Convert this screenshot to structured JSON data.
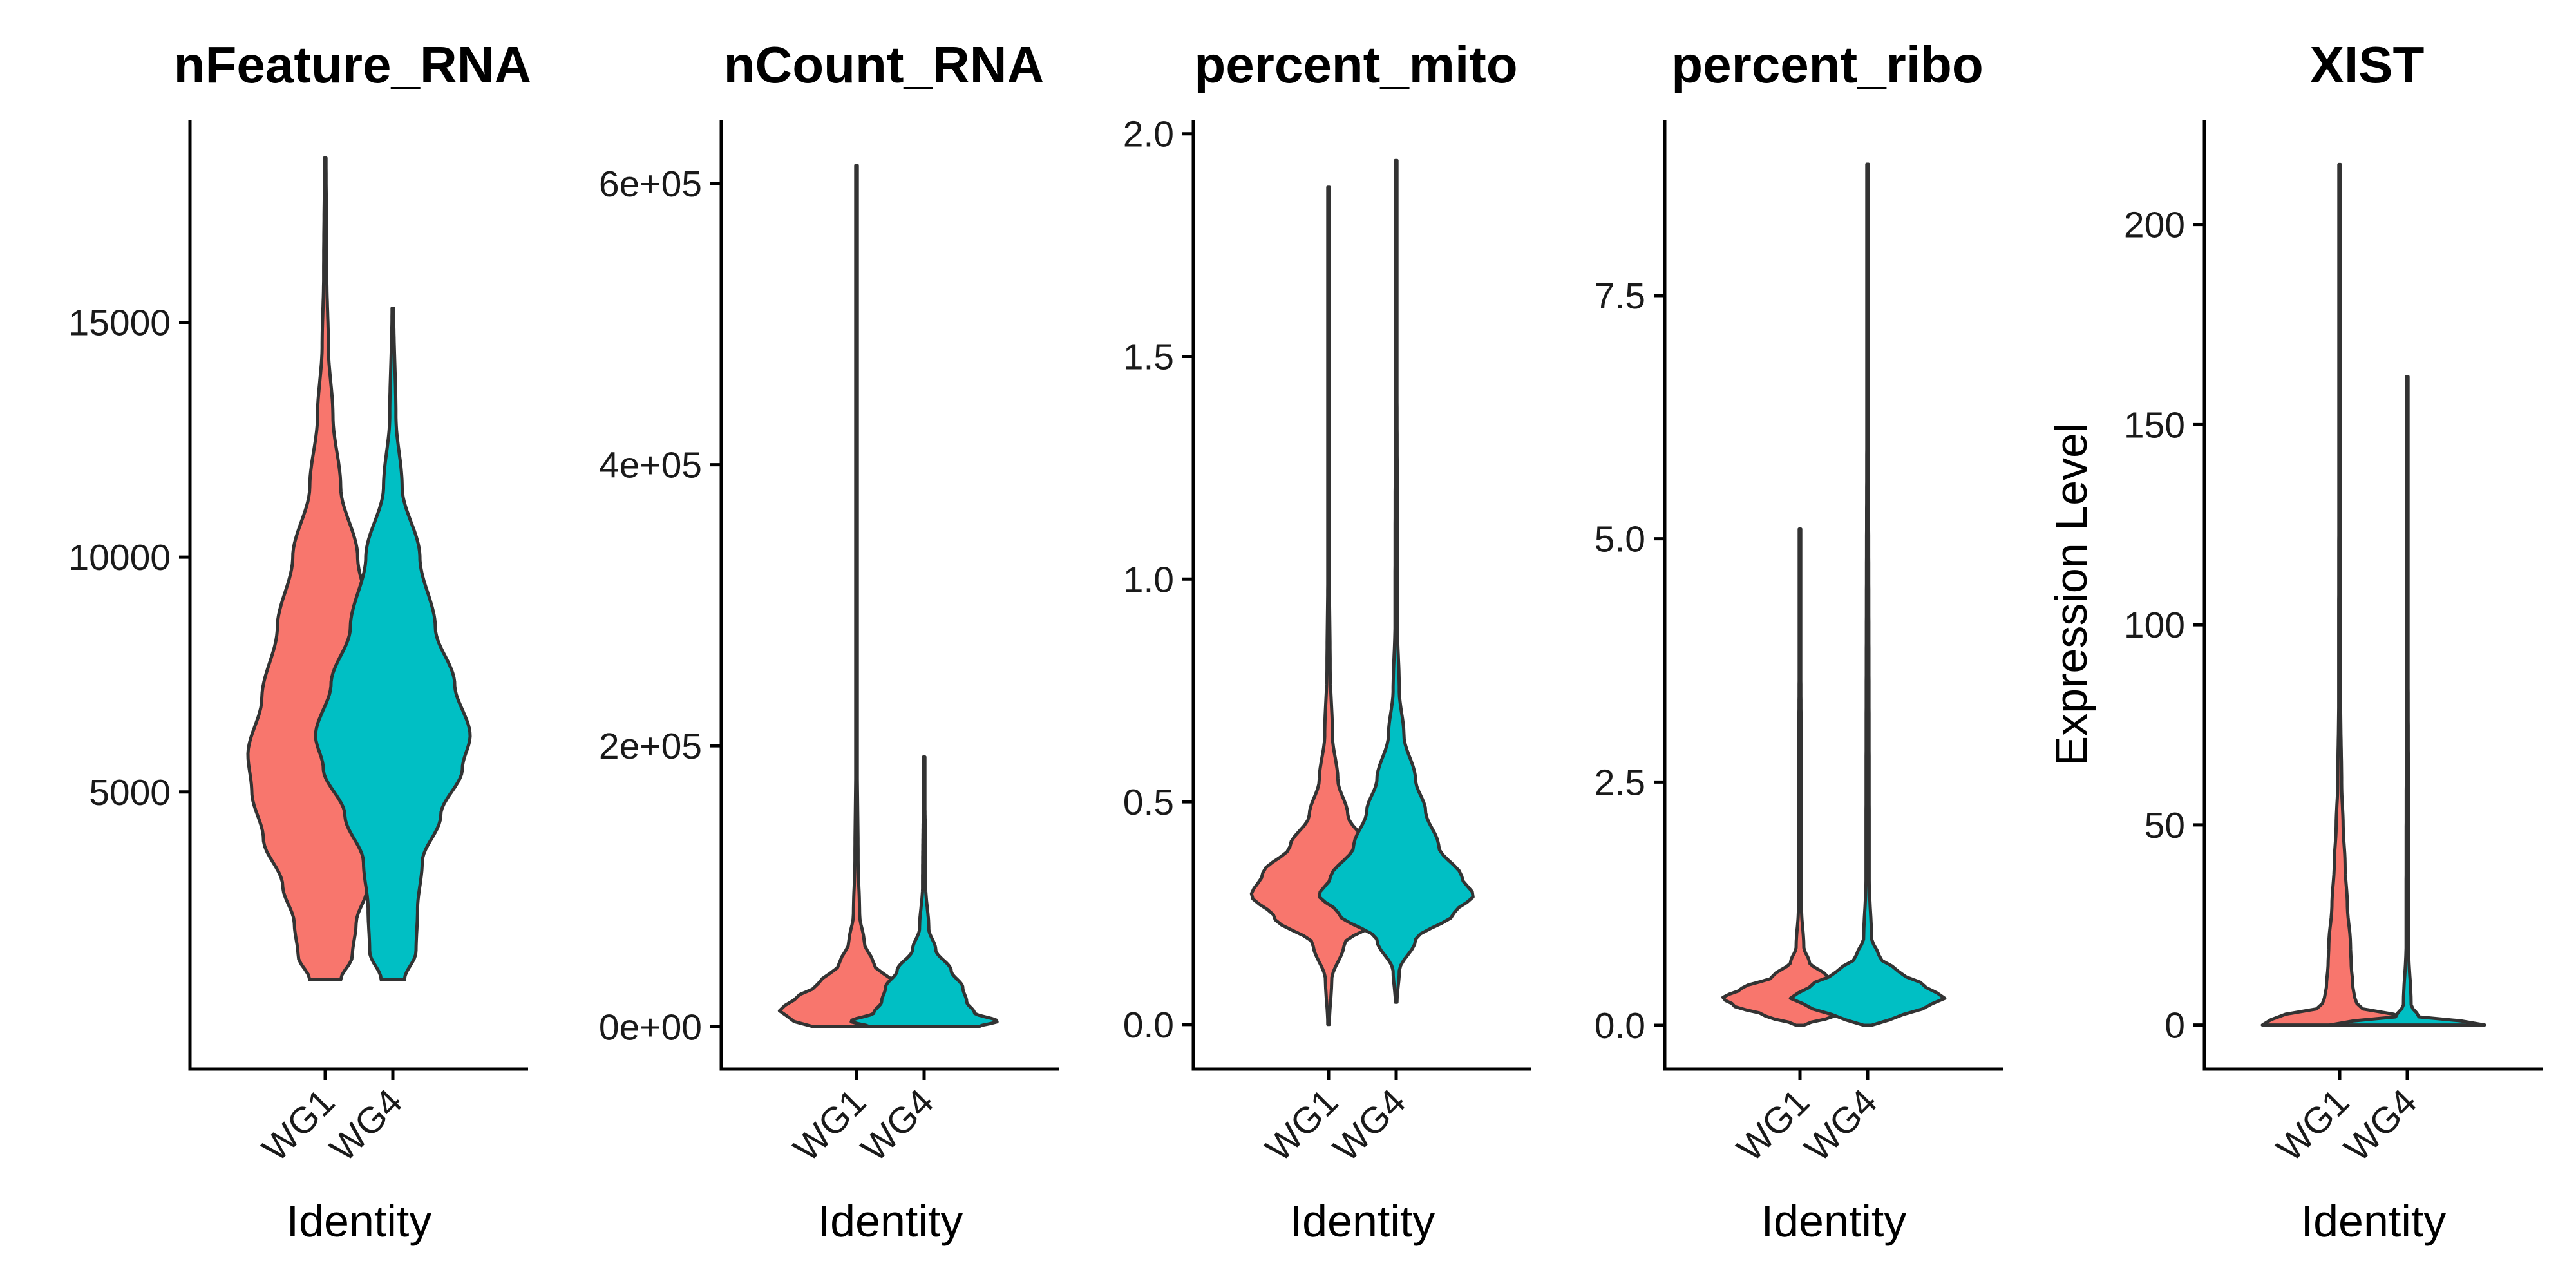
{
  "chart_data": [
    {
      "type": "violin",
      "title": "nFeature_RNA",
      "xlabel": "Identity",
      "ylabel": "",
      "categories": [
        "WG1",
        "WG4"
      ],
      "colors": [
        "#F8766D",
        "#00BFC4"
      ],
      "ylim": [
        -900,
        19300
      ],
      "yticks": [
        5000,
        10000,
        15000
      ],
      "ytick_labels": [
        "5000",
        "10000",
        "15000"
      ],
      "series": [
        {
          "range": [
            1000,
            18500
          ],
          "profile": [
            [
              1000,
              0.2
            ],
            [
              1500,
              0.35
            ],
            [
              2200,
              0.4
            ],
            [
              3000,
              0.55
            ],
            [
              4000,
              0.8
            ],
            [
              5000,
              0.95
            ],
            [
              5800,
              1.0
            ],
            [
              7000,
              0.82
            ],
            [
              8500,
              0.62
            ],
            [
              10000,
              0.42
            ],
            [
              11500,
              0.2
            ],
            [
              13000,
              0.1
            ],
            [
              14500,
              0.04
            ],
            [
              16000,
              0.02
            ],
            [
              18500,
              0.01
            ]
          ]
        },
        {
          "range": [
            1000,
            15300
          ],
          "profile": [
            [
              1000,
              0.15
            ],
            [
              1600,
              0.3
            ],
            [
              2500,
              0.32
            ],
            [
              3500,
              0.38
            ],
            [
              4500,
              0.62
            ],
            [
              5500,
              0.9
            ],
            [
              6200,
              1.0
            ],
            [
              7300,
              0.8
            ],
            [
              8500,
              0.55
            ],
            [
              10000,
              0.35
            ],
            [
              11500,
              0.12
            ],
            [
              13000,
              0.04
            ],
            [
              15300,
              0.01
            ]
          ]
        }
      ]
    },
    {
      "type": "violin",
      "title": "nCount_RNA",
      "xlabel": "Identity",
      "ylabel": "",
      "categories": [
        "WG1",
        "WG4"
      ],
      "colors": [
        "#F8766D",
        "#00BFC4"
      ],
      "ylim": [
        -30000,
        645000
      ],
      "yticks": [
        0,
        200000,
        400000,
        600000
      ],
      "ytick_labels": [
        "0e+00",
        "2e+05",
        "4e+05",
        "6e+05"
      ],
      "series": [
        {
          "range": [
            0,
            613000
          ],
          "profile": [
            [
              0,
              0.55
            ],
            [
              5000,
              0.85
            ],
            [
              12000,
              1.0
            ],
            [
              20000,
              0.8
            ],
            [
              30000,
              0.5
            ],
            [
              45000,
              0.22
            ],
            [
              60000,
              0.1
            ],
            [
              80000,
              0.04
            ],
            [
              120000,
              0.02
            ],
            [
              200000,
              0.007
            ],
            [
              613000,
              0.003
            ]
          ]
        },
        {
          "range": [
            0,
            192000
          ],
          "profile": [
            [
              0,
              0.7
            ],
            [
              4000,
              0.95
            ],
            [
              10000,
              0.65
            ],
            [
              18000,
              0.55
            ],
            [
              28000,
              0.5
            ],
            [
              40000,
              0.35
            ],
            [
              55000,
              0.15
            ],
            [
              70000,
              0.06
            ],
            [
              100000,
              0.02
            ],
            [
              192000,
              0.005
            ]
          ]
        }
      ]
    },
    {
      "type": "violin",
      "title": "percent_mito",
      "xlabel": "Identity",
      "ylabel": "",
      "categories": [
        "WG1",
        "WG4"
      ],
      "colors": [
        "#F8766D",
        "#00BFC4"
      ],
      "ylim": [
        -0.1,
        2.03
      ],
      "yticks": [
        0.0,
        0.5,
        1.0,
        1.5,
        2.0
      ],
      "ytick_labels": [
        "0.0",
        "0.5",
        "1.0",
        "1.5",
        "2.0"
      ],
      "series": [
        {
          "range": [
            0.0,
            1.88
          ],
          "profile": [
            [
              0.0,
              0.01
            ],
            [
              0.1,
              0.04
            ],
            [
              0.18,
              0.2
            ],
            [
              0.24,
              0.7
            ],
            [
              0.29,
              1.0
            ],
            [
              0.34,
              0.85
            ],
            [
              0.4,
              0.5
            ],
            [
              0.47,
              0.25
            ],
            [
              0.55,
              0.12
            ],
            [
              0.65,
              0.05
            ],
            [
              0.8,
              0.02
            ],
            [
              1.0,
              0.01
            ],
            [
              1.88,
              0.005
            ]
          ]
        },
        {
          "range": [
            0.05,
            1.94
          ],
          "profile": [
            [
              0.05,
              0.01
            ],
            [
              0.12,
              0.04
            ],
            [
              0.19,
              0.25
            ],
            [
              0.25,
              0.75
            ],
            [
              0.29,
              1.0
            ],
            [
              0.33,
              0.85
            ],
            [
              0.4,
              0.55
            ],
            [
              0.48,
              0.38
            ],
            [
              0.55,
              0.25
            ],
            [
              0.65,
              0.1
            ],
            [
              0.75,
              0.04
            ],
            [
              0.9,
              0.015
            ],
            [
              1.94,
              0.005
            ]
          ]
        }
      ]
    },
    {
      "type": "violin",
      "title": "percent_ribo",
      "xlabel": "Identity",
      "ylabel": "",
      "categories": [
        "WG1",
        "WG4"
      ],
      "colors": [
        "#F8766D",
        "#00BFC4"
      ],
      "ylim": [
        -0.45,
        9.3
      ],
      "yticks": [
        0.0,
        2.5,
        5.0,
        7.5
      ],
      "ytick_labels": [
        "0.0",
        "2.5",
        "5.0",
        "7.5"
      ],
      "series": [
        {
          "range": [
            0.0,
            5.1
          ],
          "profile": [
            [
              0.0,
              0.05
            ],
            [
              0.1,
              0.45
            ],
            [
              0.2,
              0.85
            ],
            [
              0.28,
              1.0
            ],
            [
              0.38,
              0.75
            ],
            [
              0.5,
              0.35
            ],
            [
              0.65,
              0.12
            ],
            [
              0.8,
              0.05
            ],
            [
              1.2,
              0.02
            ],
            [
              5.1,
              0.005
            ]
          ]
        },
        {
          "range": [
            0.0,
            8.85
          ],
          "profile": [
            [
              0.0,
              0.05
            ],
            [
              0.1,
              0.45
            ],
            [
              0.2,
              0.8
            ],
            [
              0.28,
              1.0
            ],
            [
              0.4,
              0.75
            ],
            [
              0.55,
              0.4
            ],
            [
              0.7,
              0.15
            ],
            [
              0.9,
              0.05
            ],
            [
              1.5,
              0.02
            ],
            [
              8.85,
              0.005
            ]
          ]
        }
      ]
    },
    {
      "type": "violin",
      "title": "XIST",
      "xlabel": "Identity",
      "ylabel": "Expression Level",
      "categories": [
        "WG1",
        "WG4"
      ],
      "colors": [
        "#F8766D",
        "#00BFC4"
      ],
      "ylim": [
        -11,
        226
      ],
      "yticks": [
        0,
        50,
        100,
        150,
        200
      ],
      "ytick_labels": [
        "0",
        "50",
        "100",
        "150",
        "200"
      ],
      "series": [
        {
          "range": [
            0,
            215
          ],
          "profile": [
            [
              0,
              1.0
            ],
            [
              2,
              0.85
            ],
            [
              4,
              0.3
            ],
            [
              6,
              0.2
            ],
            [
              10,
              0.17
            ],
            [
              15,
              0.15
            ],
            [
              20,
              0.14
            ],
            [
              30,
              0.1
            ],
            [
              40,
              0.07
            ],
            [
              50,
              0.045
            ],
            [
              60,
              0.025
            ],
            [
              80,
              0.012
            ],
            [
              215,
              0.005
            ]
          ]
        },
        {
          "range": [
            0,
            162
          ],
          "profile": [
            [
              0,
              1.0
            ],
            [
              1,
              0.7
            ],
            [
              2,
              0.15
            ],
            [
              5,
              0.05
            ],
            [
              20,
              0.015
            ],
            [
              162,
              0.004
            ]
          ]
        }
      ]
    }
  ]
}
